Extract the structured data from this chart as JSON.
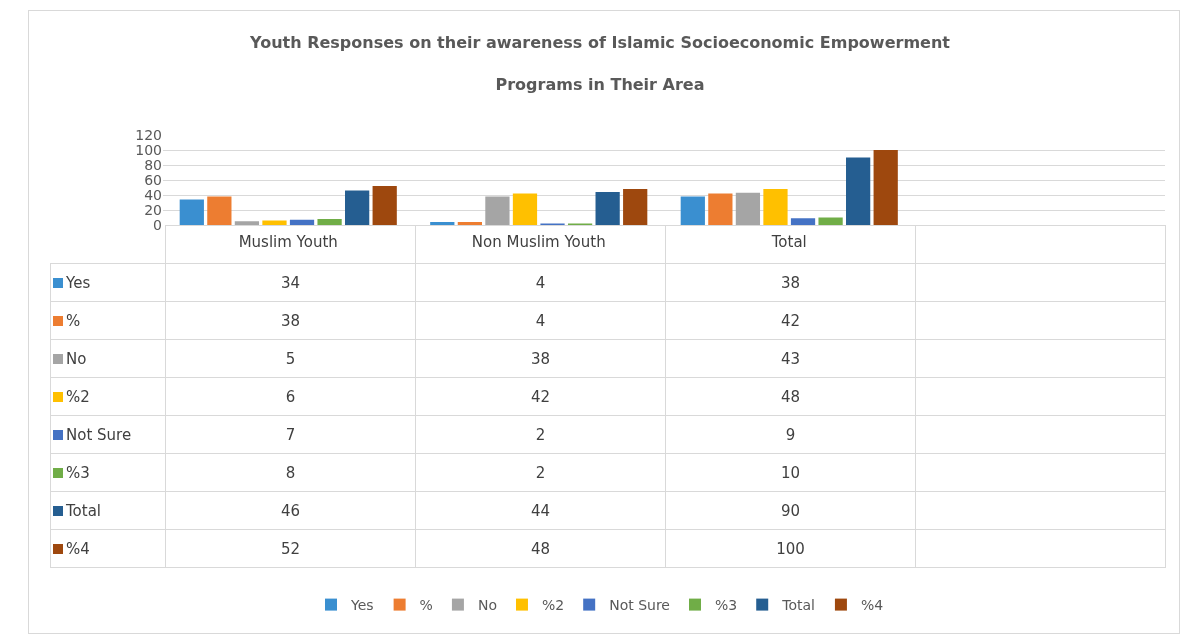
{
  "chart_data": {
    "type": "bar",
    "title": "Youth Responses on their awareness of Islamic Socioeconomic  Empowerment Programs in Their Area",
    "categories": [
      "Muslim Youth",
      "Non Muslim Youth",
      "Total",
      null
    ],
    "series": [
      {
        "name": "Yes",
        "color": "#3a8fd0",
        "values": [
          34,
          4,
          38,
          null
        ]
      },
      {
        "name": "%",
        "color": "#ed7d31",
        "values": [
          38,
          4,
          42,
          null
        ]
      },
      {
        "name": "No",
        "color": "#a5a5a5",
        "values": [
          5,
          38,
          43,
          null
        ]
      },
      {
        "name": "%2",
        "color": "#ffc000",
        "values": [
          6,
          42,
          48,
          null
        ]
      },
      {
        "name": "Not Sure",
        "color": "#4472c4",
        "values": [
          7,
          2,
          9,
          null
        ]
      },
      {
        "name": "%3",
        "color": "#70ad47",
        "values": [
          8,
          2,
          10,
          null
        ]
      },
      {
        "name": "Total",
        "color": "#255e91",
        "values": [
          46,
          44,
          90,
          null
        ]
      },
      {
        "name": "%4",
        "color": "#9e480e",
        "values": [
          52,
          48,
          100,
          null
        ]
      }
    ],
    "ylim": [
      0,
      120
    ],
    "yticks": [
      0,
      20,
      40,
      60,
      80,
      100,
      120
    ],
    "grid": "y",
    "legend": "bottom",
    "data_labels": true
  }
}
